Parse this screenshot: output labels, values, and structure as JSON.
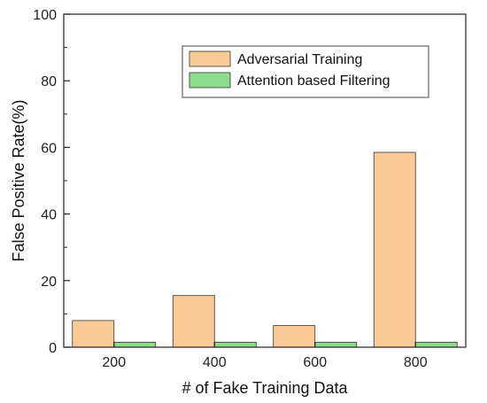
{
  "chart_data": {
    "type": "bar",
    "title": "",
    "xlabel": "# of Fake Training Data",
    "ylabel": "False Positive Rate(%)",
    "categories": [
      "200",
      "400",
      "600",
      "800"
    ],
    "ylim": [
      0,
      100
    ],
    "yticks": [
      0,
      20,
      40,
      60,
      80,
      100
    ],
    "grid": false,
    "legend": "top-right",
    "series": [
      {
        "name": "Adversarial Training",
        "values": [
          8.0,
          15.5,
          6.5,
          58.5
        ],
        "color": "#FBCA96"
      },
      {
        "name": "Attention based Filtering",
        "values": [
          1.5,
          1.5,
          1.5,
          1.5
        ],
        "color": "#8CDC8C"
      }
    ]
  }
}
